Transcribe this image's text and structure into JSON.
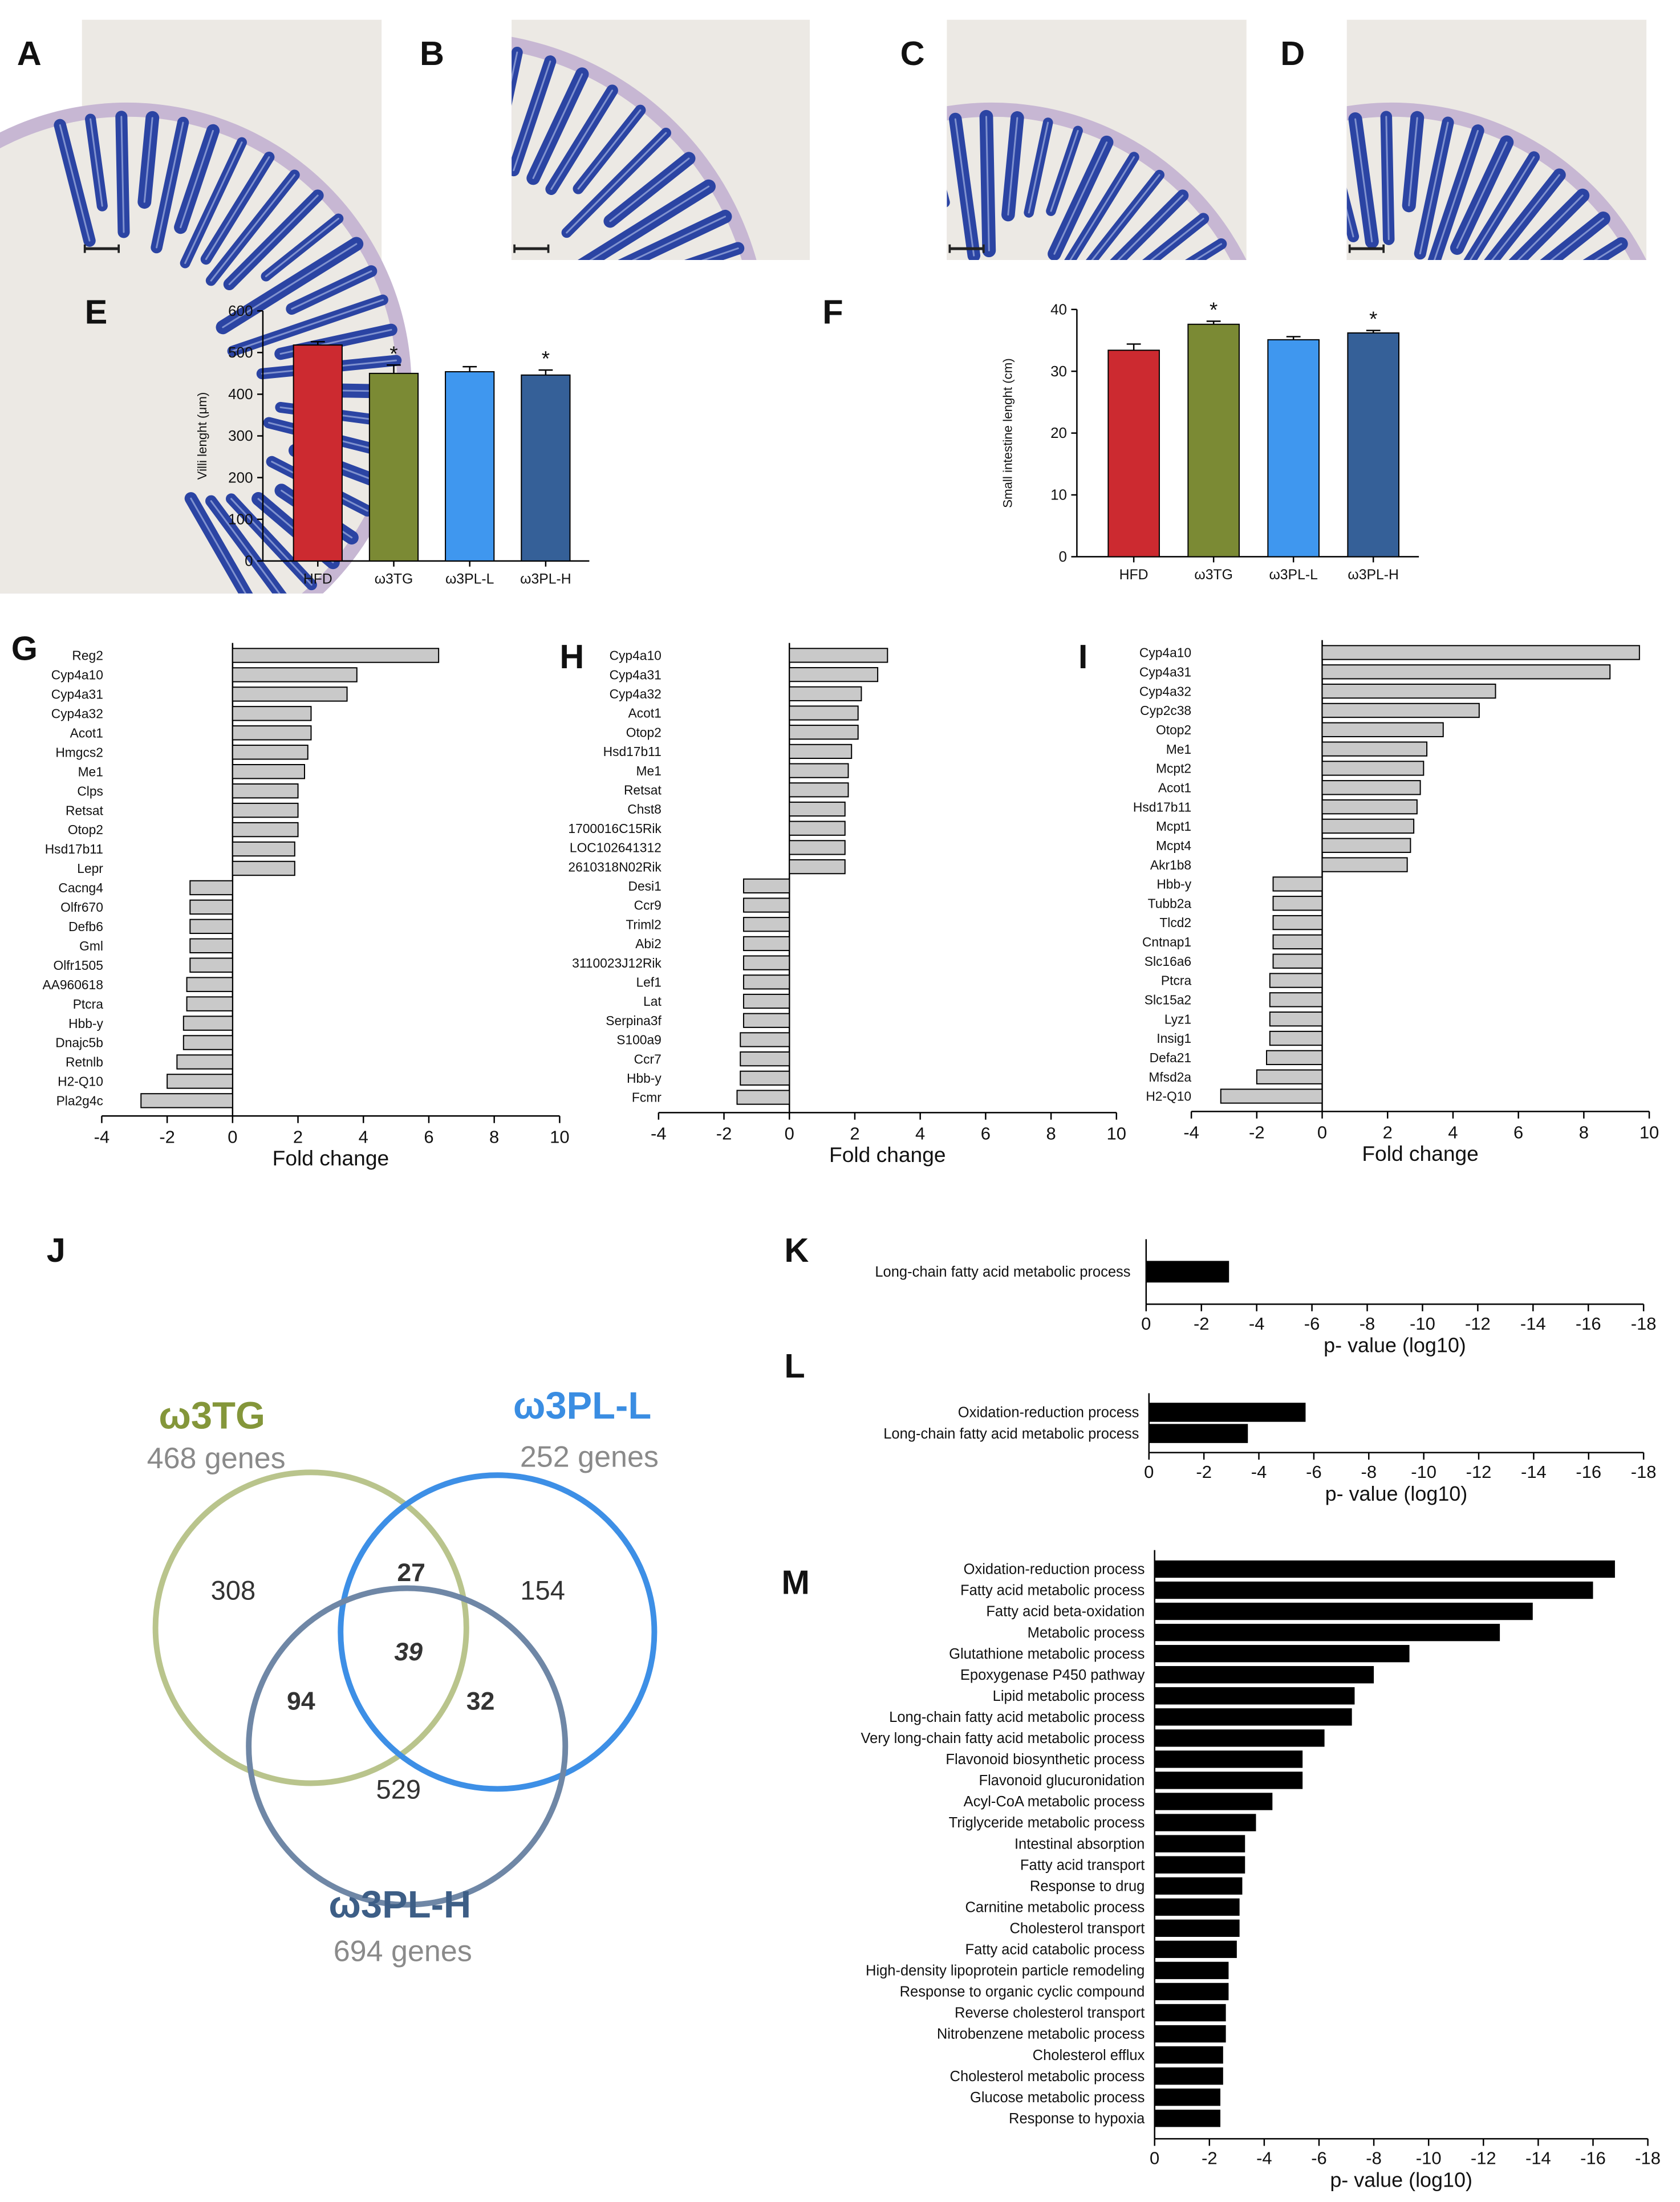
{
  "panel_letters": [
    "A",
    "B",
    "C",
    "D",
    "E",
    "F",
    "G",
    "H",
    "I",
    "J",
    "K",
    "L",
    "M"
  ],
  "colors": {
    "hfd": "#cc2a30",
    "w3tg": "#7b8a34",
    "w3pll": "#3f97ef",
    "w3plh": "#356098",
    "gene_bar": "#c9c9c9",
    "go_bar": "#000000",
    "venn_tg": "#b9c48c",
    "venn_pll": "#3d8fe6",
    "venn_plh": "#6f87a6",
    "label_tg": "#84963a",
    "label_pll": "#3a8de2",
    "label_plh": "#3d5e86",
    "genes_text": "#8a8a8a"
  },
  "chart_data": [
    {
      "id": "E",
      "type": "bar",
      "categories": [
        "HFD",
        "ω3TG",
        "ω3PL-L",
        "ω3PL-H"
      ],
      "values": [
        518,
        450,
        454,
        446
      ],
      "errors": [
        8,
        20,
        12,
        12
      ],
      "significance": [
        "",
        "*",
        "",
        "*"
      ],
      "ylabel": "Villi lenght (μm)",
      "ylim": [
        0,
        600
      ],
      "yticks": [
        0,
        100,
        200,
        300,
        400,
        500,
        600
      ]
    },
    {
      "id": "F",
      "type": "bar",
      "categories": [
        "HFD",
        "ω3TG",
        "ω3PL-L",
        "ω3PL-H"
      ],
      "values": [
        33.4,
        37.6,
        35.1,
        36.2
      ],
      "errors": [
        1.0,
        0.5,
        0.5,
        0.4
      ],
      "significance": [
        "",
        "*",
        "",
        "*"
      ],
      "ylabel": "Small intestine lenght (cm)",
      "ylim": [
        0,
        40
      ],
      "yticks": [
        0,
        10,
        20,
        30,
        40
      ]
    },
    {
      "id": "G",
      "type": "bar",
      "orientation": "horizontal",
      "xlabel": "Fold change",
      "xlim": [
        -4,
        10
      ],
      "xticks": [
        -4,
        -2,
        0,
        2,
        4,
        6,
        8,
        10
      ],
      "genes": [
        "Reg2",
        "Cyp4a10",
        "Cyp4a31",
        "Cyp4a32",
        "Acot1",
        "Hmgcs2",
        "Me1",
        "Clps",
        "Retsat",
        "Otop2",
        "Hsd17b11",
        "Lepr",
        "Cacng4",
        "Olfr670",
        "Defb6",
        "Gml",
        "Olfr1505",
        "AA960618",
        "Ptcra",
        "Hbb-y",
        "Dnajc5b",
        "Retnlb",
        "H2-Q10",
        "Pla2g4c"
      ],
      "values": [
        6.3,
        3.8,
        3.5,
        2.4,
        2.4,
        2.3,
        2.2,
        2.0,
        2.0,
        2.0,
        1.9,
        1.9,
        -1.3,
        -1.3,
        -1.3,
        -1.3,
        -1.3,
        -1.4,
        -1.4,
        -1.5,
        -1.5,
        -1.7,
        -2.0,
        -2.8
      ]
    },
    {
      "id": "H",
      "type": "bar",
      "orientation": "horizontal",
      "xlabel": "Fold change",
      "xlim": [
        -4,
        10
      ],
      "xticks": [
        -4,
        -2,
        0,
        2,
        4,
        6,
        8,
        10
      ],
      "genes": [
        "Cyp4a10",
        "Cyp4a31",
        "Cyp4a32",
        "Acot1",
        "Otop2",
        "Hsd17b11",
        "Me1",
        "Retsat",
        "Chst8",
        "1700016C15Rik",
        "LOC102641312",
        "2610318N02Rik",
        "Desi1",
        "Ccr9",
        "Triml2",
        "Abi2",
        "3110023J12Rik",
        "Lef1",
        "Lat",
        "Serpina3f",
        "S100a9",
        "Ccr7",
        "Hbb-y",
        "Fcmr"
      ],
      "values": [
        3.0,
        2.7,
        2.2,
        2.1,
        2.1,
        1.9,
        1.8,
        1.8,
        1.7,
        1.7,
        1.7,
        1.7,
        -1.4,
        -1.4,
        -1.4,
        -1.4,
        -1.4,
        -1.4,
        -1.4,
        -1.4,
        -1.5,
        -1.5,
        -1.5,
        -1.6
      ]
    },
    {
      "id": "I",
      "type": "bar",
      "orientation": "horizontal",
      "xlabel": "Fold change",
      "xlim": [
        -4,
        10
      ],
      "xticks": [
        -4,
        -2,
        0,
        2,
        4,
        6,
        8,
        10
      ],
      "genes": [
        "Cyp4a10",
        "Cyp4a31",
        "Cyp4a32",
        "Cyp2c38",
        "Otop2",
        "Me1",
        "Mcpt2",
        "Acot1",
        "Hsd17b11",
        "Mcpt1",
        "Mcpt4",
        "Akr1b8",
        "Hbb-y",
        "Tubb2a",
        "Tlcd2",
        "Cntnap1",
        "Slc16a6",
        "Ptcra",
        "Slc15a2",
        "Lyz1",
        "Insig1",
        "Defa21",
        "Mfsd2a",
        "H2-Q10"
      ],
      "values": [
        9.7,
        8.8,
        5.3,
        4.8,
        3.7,
        3.2,
        3.1,
        3.0,
        2.9,
        2.8,
        2.7,
        2.6,
        -1.5,
        -1.5,
        -1.5,
        -1.5,
        -1.5,
        -1.6,
        -1.6,
        -1.6,
        -1.6,
        -1.7,
        -2.0,
        -3.1
      ]
    },
    {
      "id": "K",
      "type": "bar",
      "orientation": "horizontal",
      "xlabel": "p- value (log10)",
      "xlim": [
        0,
        -18
      ],
      "xticks": [
        0,
        -2,
        -4,
        -6,
        -8,
        -10,
        -12,
        -14,
        -16,
        -18
      ],
      "terms": [
        "Long-chain fatty acid metabolic process"
      ],
      "values": [
        -3.0
      ]
    },
    {
      "id": "L",
      "type": "bar",
      "orientation": "horizontal",
      "xlabel": "p- value (log10)",
      "xlim": [
        0,
        -18
      ],
      "xticks": [
        0,
        -2,
        -4,
        -6,
        -8,
        -10,
        -12,
        -14,
        -16,
        -18
      ],
      "terms": [
        "Oxidation-reduction process",
        "Long-chain fatty acid metabolic process"
      ],
      "values": [
        -5.7,
        -3.6
      ]
    },
    {
      "id": "M",
      "type": "bar",
      "orientation": "horizontal",
      "xlabel": "p- value (log10)",
      "xlim": [
        0,
        -18
      ],
      "xticks": [
        0,
        -2,
        -4,
        -6,
        -8,
        -10,
        -12,
        -14,
        -16,
        -18
      ],
      "terms": [
        "Oxidation-reduction process",
        "Fatty acid metabolic process",
        "Fatty acid beta-oxidation",
        "Metabolic process",
        "Glutathione metabolic process",
        "Epoxygenase P450 pathway",
        "Lipid metabolic process",
        "Long-chain fatty acid metabolic process",
        "Very long-chain fatty acid metabolic process",
        "Flavonoid biosynthetic process",
        "Flavonoid glucuronidation",
        "Acyl-CoA metabolic process",
        "Triglyceride metabolic process",
        "Intestinal absorption",
        "Fatty acid transport",
        "Response to drug",
        "Carnitine metabolic process",
        "Cholesterol transport",
        "Fatty acid catabolic process",
        "High-density lipoprotein particle remodeling",
        "Response to organic cyclic compound",
        "Reverse cholesterol transport",
        "Nitrobenzene metabolic process",
        "Cholesterol efflux",
        "Cholesterol metabolic process",
        "Glucose metabolic process",
        "Response to hypoxia"
      ],
      "values": [
        -16.8,
        -16.0,
        -13.8,
        -12.6,
        -9.3,
        -8.0,
        -7.3,
        -7.2,
        -6.2,
        -5.4,
        -5.4,
        -4.3,
        -3.7,
        -3.3,
        -3.3,
        -3.2,
        -3.1,
        -3.1,
        -3.0,
        -2.7,
        -2.7,
        -2.6,
        -2.6,
        -2.5,
        -2.5,
        -2.4,
        -2.4
      ]
    },
    {
      "id": "J",
      "type": "venn",
      "sets": [
        {
          "name": "ω3TG",
          "subtitle": "468 genes"
        },
        {
          "name": "ω3PL-L",
          "subtitle": "252 genes"
        },
        {
          "name": "ω3PL-H",
          "subtitle": "694 genes"
        }
      ],
      "regions": {
        "tg_only": "308",
        "pll_only": "154",
        "plh_only": "529",
        "tg_pll": "27",
        "tg_plh": "94",
        "pll_plh": "32",
        "all": "39"
      }
    },
    {
      "id": "A-D",
      "type": "image",
      "description": "Histology micrographs of small intestine villi (blue stain) with scale bars",
      "panels": [
        "A",
        "B",
        "C",
        "D"
      ]
    }
  ]
}
